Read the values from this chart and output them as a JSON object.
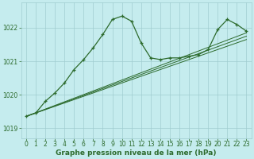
{
  "xlabel": "Graphe pression niveau de la mer (hPa)",
  "background_color": "#c5ecee",
  "grid_color": "#a0cdd0",
  "line_color": "#2d6b2d",
  "xlim": [
    -0.5,
    23.5
  ],
  "ylim": [
    1018.7,
    1022.75
  ],
  "yticks": [
    1019,
    1020,
    1021,
    1022
  ],
  "xticks": [
    0,
    1,
    2,
    3,
    4,
    5,
    6,
    7,
    8,
    9,
    10,
    11,
    12,
    13,
    14,
    15,
    16,
    17,
    18,
    19,
    20,
    21,
    22,
    23
  ],
  "series1_x": [
    0,
    1,
    2,
    3,
    4,
    5,
    6,
    7,
    8,
    9,
    10,
    11,
    12,
    13,
    14,
    15,
    16,
    17,
    18,
    19,
    20,
    21,
    22,
    23
  ],
  "series1_y": [
    1019.35,
    1019.45,
    1019.8,
    1020.05,
    1020.35,
    1020.75,
    1021.05,
    1021.4,
    1021.8,
    1022.25,
    1022.35,
    1022.2,
    1021.55,
    1021.1,
    1021.05,
    1021.1,
    1021.1,
    1021.15,
    1021.2,
    1021.35,
    1021.95,
    1022.25,
    1022.1,
    1021.9
  ],
  "series2_x": [
    0,
    23
  ],
  "series2_y": [
    1019.35,
    1021.85
  ],
  "series3_x": [
    0,
    23
  ],
  "series3_y": [
    1019.35,
    1021.75
  ],
  "series4_x": [
    0,
    23
  ],
  "series4_y": [
    1019.35,
    1021.65
  ],
  "xlabel_fontsize": 6.5,
  "tick_fontsize": 5.5,
  "figsize": [
    3.2,
    2.0
  ],
  "dpi": 100
}
